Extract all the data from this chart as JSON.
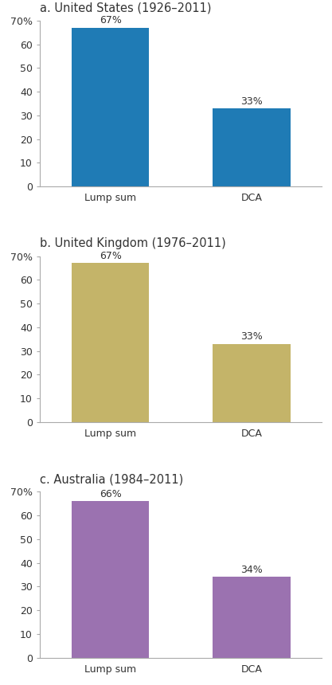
{
  "charts": [
    {
      "title": "a. United States (1926–2011)",
      "categories": [
        "Lump sum",
        "DCA"
      ],
      "values": [
        67,
        33
      ],
      "labels": [
        "67%",
        "33%"
      ],
      "color": "#1f7bb5"
    },
    {
      "title": "b. United Kingdom (1976–2011)",
      "categories": [
        "Lump sum",
        "DCA"
      ],
      "values": [
        67,
        33
      ],
      "labels": [
        "67%",
        "33%"
      ],
      "color": "#c4b469"
    },
    {
      "title": "c. Australia (1984–2011)",
      "categories": [
        "Lump sum",
        "DCA"
      ],
      "values": [
        66,
        34
      ],
      "labels": [
        "66%",
        "34%"
      ],
      "color": "#9b72b0"
    }
  ],
  "ylim": [
    0,
    70
  ],
  "yticks": [
    0,
    10,
    20,
    30,
    40,
    50,
    60,
    70
  ],
  "ytick_labels": [
    "0",
    "10",
    "20",
    "30",
    "40",
    "50",
    "60",
    "70%"
  ],
  "background_color": "#ffffff",
  "bar_width": 0.55,
  "title_fontsize": 10.5,
  "tick_fontsize": 9,
  "value_label_fontsize": 9,
  "spine_color": "#aaaaaa",
  "text_color": "#333333"
}
